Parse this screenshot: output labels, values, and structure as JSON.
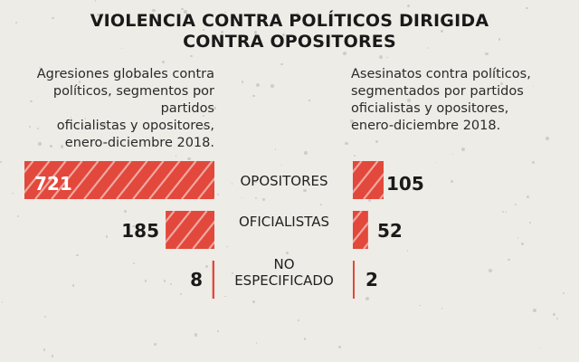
{
  "title_line1": "VIOLENCIA CONTRA POLÍTICOS DIRIGIDA",
  "title_line2": "CONTRA OPOSITORES",
  "chart_data": [
    {
      "type": "bar",
      "subtitle_lines": [
        "Agresiones globales contra",
        "políticos, segmentos por partidos",
        "oficialistas y opositores,",
        "enero-diciembre 2018."
      ],
      "categories": [
        "OPOSITORES",
        "OFICIALISTAS",
        "NO ESPECIFICADO"
      ],
      "values": [
        721,
        185,
        8
      ],
      "labels": [
        "721",
        "185",
        "8"
      ],
      "color": "#e2483b"
    },
    {
      "type": "bar",
      "subtitle_lines": [
        "Asesinatos contra políticos,",
        "segmentados por partidos",
        "oficialistas y opositores,",
        "enero-diciembre 2018."
      ],
      "categories": [
        "OPOSITORES",
        "OFICIALISTAS",
        "NO ESPECIFICADO"
      ],
      "values": [
        105,
        52,
        2
      ],
      "labels": [
        "105",
        "52",
        "2"
      ],
      "color": "#e2483b"
    }
  ],
  "category_labels": {
    "opositores": "OPOSITORES",
    "oficialistas": "OFICIALISTAS",
    "no": "NO",
    "especificado": "ESPECIFICADO"
  }
}
